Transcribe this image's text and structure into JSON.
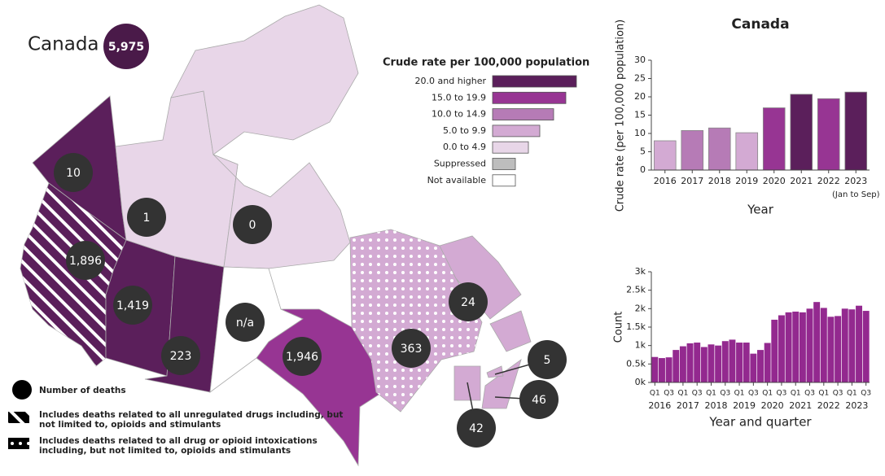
{
  "map": {
    "title": "Canada",
    "total": "5,975",
    "legend_title": "Crude rate per 100,000 population",
    "legend": [
      {
        "label": "20.0 and higher",
        "color": "#5b1f5b"
      },
      {
        "label": "15.0 to 19.9",
        "color": "#973593"
      },
      {
        "label": "10.0 to 14.9",
        "color": "#b67bb6"
      },
      {
        "label": "5.0 to 9.9",
        "color": "#d3aad3"
      },
      {
        "label": "0.0 to 4.9",
        "color": "#e8d6e8"
      },
      {
        "label": "Suppressed",
        "color": "#bdbdbd"
      },
      {
        "label": "Not available",
        "color": "#ffffff"
      }
    ],
    "regions": [
      {
        "label": "10",
        "color": "#5b1f5b"
      },
      {
        "label": "1,896",
        "color": "#5b1f5b",
        "pattern": "hatch"
      },
      {
        "label": "1,419",
        "color": "#5b1f5b"
      },
      {
        "label": "223",
        "color": "#5b1f5b"
      },
      {
        "label": "1",
        "color": "#e8d6e8"
      },
      {
        "label": "0",
        "color": "#e8d6e8"
      },
      {
        "label": "n/a",
        "color": "#ffffff"
      },
      {
        "label": "1,946",
        "color": "#973593"
      },
      {
        "label": "363",
        "color": "#d3aad3",
        "pattern": "dots"
      },
      {
        "label": "24",
        "color": "#d3aad3"
      },
      {
        "label": "42",
        "color": "#d3aad3"
      },
      {
        "label": "46",
        "color": "#d3aad3"
      },
      {
        "label": "5",
        "color": "#d3aad3"
      }
    ],
    "notes": [
      "Number of deaths",
      "Includes deaths related to all unregulated drugs including, but not limited to, opioids and stimulants",
      "Includes deaths related to all drug or opioid intoxications including, but not limited to, opioids and stimulants"
    ]
  },
  "chart_data": [
    {
      "type": "bar",
      "title": "Canada",
      "xlabel": "Year",
      "ylabel": "Crude rate (per 100,000 population)",
      "categories": [
        "2016",
        "2017",
        "2018",
        "2019",
        "2020",
        "2021",
        "2022",
        "2023"
      ],
      "x_note": "(Jan to Sep)",
      "values": [
        8.0,
        10.8,
        11.5,
        10.2,
        17.0,
        20.7,
        19.5,
        21.3
      ],
      "colors": [
        "#d3aad3",
        "#b67bb6",
        "#b67bb6",
        "#d3aad3",
        "#973593",
        "#5b1f5b",
        "#973593",
        "#5b1f5b"
      ],
      "ylim": [
        0,
        30
      ],
      "yticks": [
        0,
        5,
        10,
        15,
        20,
        25,
        30
      ]
    },
    {
      "type": "bar",
      "xlabel": "Year and quarter",
      "ylabel": "Count",
      "categories": [
        "Q1",
        null,
        "Q3",
        null,
        "Q1",
        null,
        "Q3",
        null,
        "Q1",
        null,
        "Q3",
        null,
        "Q1",
        null,
        "Q3",
        null,
        "Q1",
        null,
        "Q3",
        null,
        "Q1",
        null,
        "Q3",
        null,
        "Q1",
        null,
        "Q3",
        null,
        "Q1",
        null,
        "Q3"
      ],
      "x_groups": [
        "2016",
        "2017",
        "2018",
        "2019",
        "2020",
        "2021",
        "2022",
        "2023"
      ],
      "values": [
        690,
        660,
        680,
        880,
        980,
        1060,
        1080,
        960,
        1030,
        1000,
        1120,
        1160,
        1080,
        1080,
        780,
        880,
        1070,
        1700,
        1820,
        1900,
        1920,
        1900,
        2000,
        2180,
        2020,
        1780,
        1800,
        2000,
        1980,
        2080,
        1940
      ],
      "color": "#93298f",
      "ylim": [
        0,
        3000
      ],
      "yticks": [
        {
          "value": 0,
          "label": "0k"
        },
        {
          "value": 500,
          "label": "0.5k"
        },
        {
          "value": 1000,
          "label": "1k"
        },
        {
          "value": 1500,
          "label": "1.5k"
        },
        {
          "value": 2000,
          "label": "2k"
        },
        {
          "value": 2500,
          "label": "2.5k"
        },
        {
          "value": 3000,
          "label": "3k"
        }
      ]
    }
  ]
}
